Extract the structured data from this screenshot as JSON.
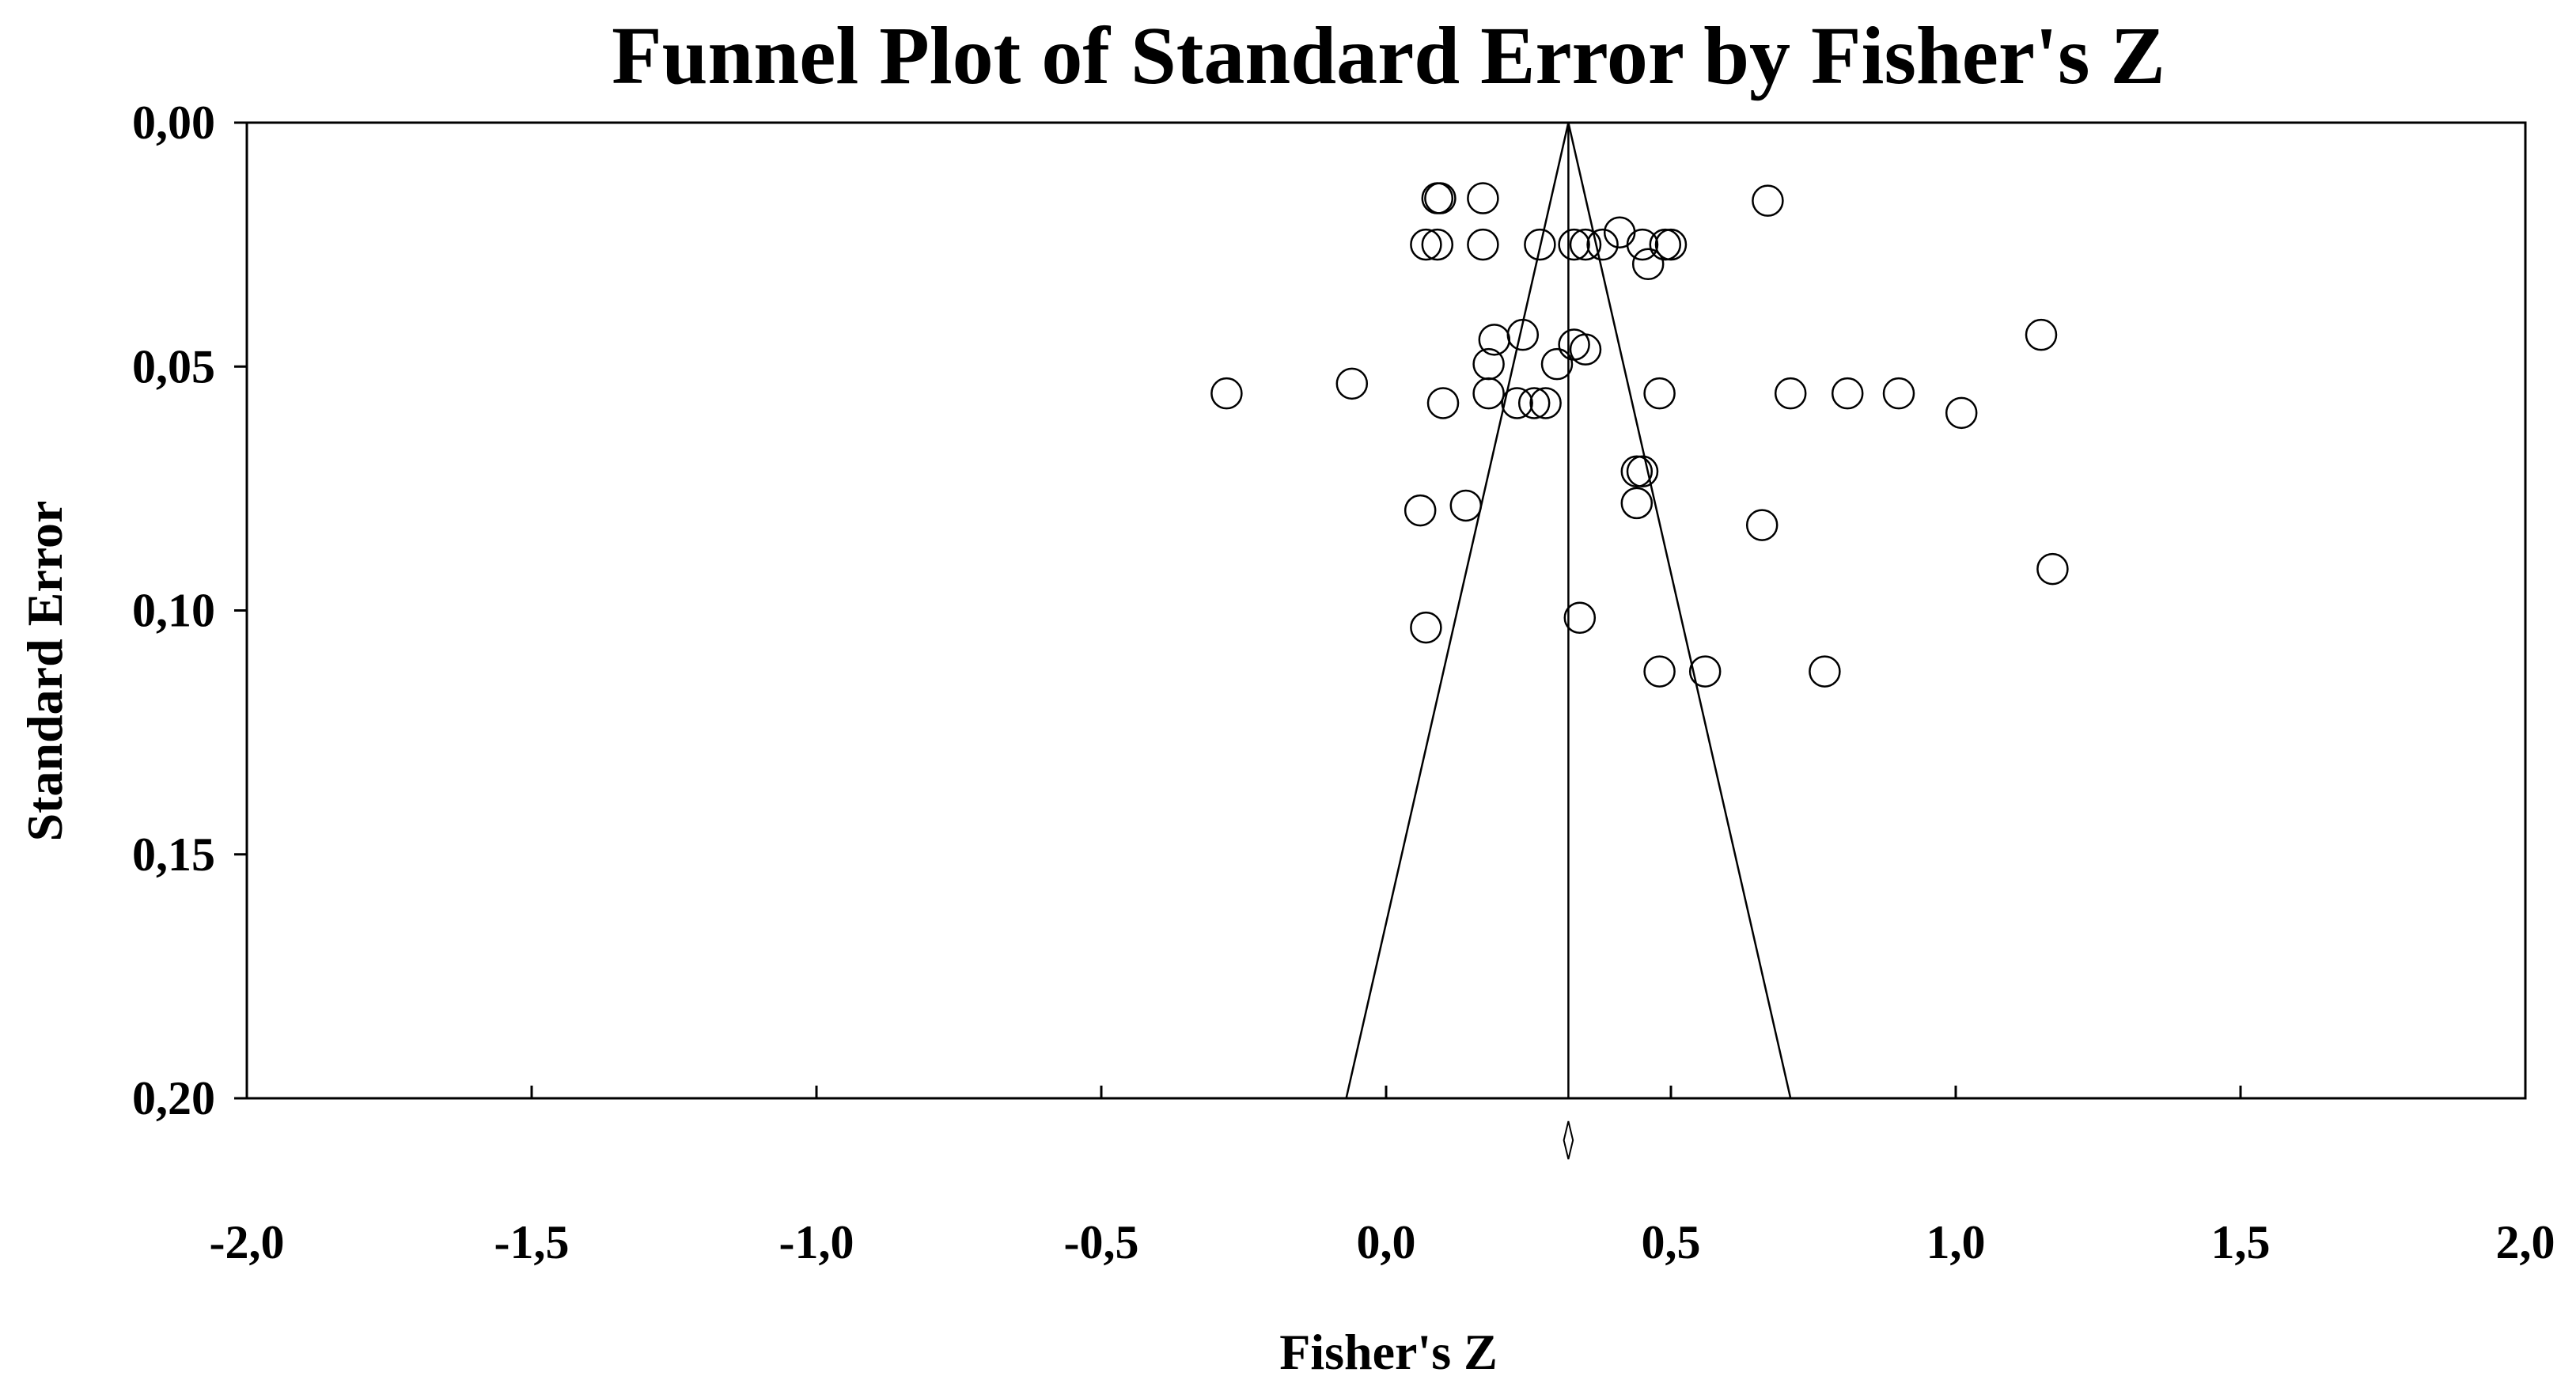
{
  "chart_data": {
    "type": "scatter",
    "title": "Funnel Plot of Standard Error by Fisher's Z",
    "xlabel": "Fisher's Z",
    "ylabel": "Standard Error",
    "xlim": [
      -2.0,
      2.0
    ],
    "ylim": [
      0.0,
      0.2
    ],
    "y_inverted": true,
    "x_ticks": [
      "-2,0",
      "-1,5",
      "-1,0",
      "-0,5",
      "0,0",
      "0,5",
      "1,0",
      "1,5",
      "2,0"
    ],
    "x_tick_values": [
      -2.0,
      -1.5,
      -1.0,
      -0.5,
      0.0,
      0.5,
      1.0,
      1.5,
      2.0
    ],
    "y_ticks": [
      "0,00",
      "0,05",
      "0,10",
      "0,15",
      "0,20"
    ],
    "y_tick_values": [
      0.0,
      0.05,
      0.1,
      0.15,
      0.2
    ],
    "grid": false,
    "summary_effect": 0.32,
    "funnel": {
      "apex": [
        0.32,
        0.0
      ],
      "base_left": [
        -0.07,
        0.2
      ],
      "base_right": [
        0.71,
        0.2
      ]
    },
    "summary_diamond": {
      "x_center": 0.32,
      "half_width": 0.008
    },
    "points": [
      {
        "x": 0.09,
        "y": 0.0155
      },
      {
        "x": 0.095,
        "y": 0.0155
      },
      {
        "x": 0.17,
        "y": 0.0155
      },
      {
        "x": 0.67,
        "y": 0.016
      },
      {
        "x": 0.07,
        "y": 0.025
      },
      {
        "x": 0.09,
        "y": 0.025
      },
      {
        "x": 0.17,
        "y": 0.025
      },
      {
        "x": 0.27,
        "y": 0.025
      },
      {
        "x": 0.33,
        "y": 0.025
      },
      {
        "x": 0.35,
        "y": 0.025
      },
      {
        "x": 0.38,
        "y": 0.025
      },
      {
        "x": 0.41,
        "y": 0.0225
      },
      {
        "x": 0.45,
        "y": 0.025
      },
      {
        "x": 0.49,
        "y": 0.025
      },
      {
        "x": 0.5,
        "y": 0.025
      },
      {
        "x": 0.46,
        "y": 0.029
      },
      {
        "x": 1.15,
        "y": 0.0435
      },
      {
        "x": 0.19,
        "y": 0.0445
      },
      {
        "x": 0.24,
        "y": 0.0435
      },
      {
        "x": 0.33,
        "y": 0.0455
      },
      {
        "x": 0.35,
        "y": 0.0465
      },
      {
        "x": 0.18,
        "y": 0.0495
      },
      {
        "x": 0.3,
        "y": 0.0495
      },
      {
        "x": -0.06,
        "y": 0.0535
      },
      {
        "x": -0.28,
        "y": 0.0555
      },
      {
        "x": 0.18,
        "y": 0.0555
      },
      {
        "x": 0.1,
        "y": 0.0575
      },
      {
        "x": 0.23,
        "y": 0.0575
      },
      {
        "x": 0.26,
        "y": 0.0575
      },
      {
        "x": 0.28,
        "y": 0.0575
      },
      {
        "x": 0.48,
        "y": 0.0555
      },
      {
        "x": 0.71,
        "y": 0.0555
      },
      {
        "x": 0.81,
        "y": 0.0555
      },
      {
        "x": 0.9,
        "y": 0.0555
      },
      {
        "x": 1.01,
        "y": 0.0595
      },
      {
        "x": 0.44,
        "y": 0.0715
      },
      {
        "x": 0.45,
        "y": 0.0715
      },
      {
        "x": 0.44,
        "y": 0.078
      },
      {
        "x": 0.06,
        "y": 0.0795
      },
      {
        "x": 0.14,
        "y": 0.0785
      },
      {
        "x": 0.66,
        "y": 0.0825
      },
      {
        "x": 1.17,
        "y": 0.0915
      },
      {
        "x": 0.07,
        "y": 0.1035
      },
      {
        "x": 0.34,
        "y": 0.1015
      },
      {
        "x": 0.48,
        "y": 0.1125
      },
      {
        "x": 0.56,
        "y": 0.1125
      },
      {
        "x": 0.77,
        "y": 0.1125
      }
    ]
  }
}
